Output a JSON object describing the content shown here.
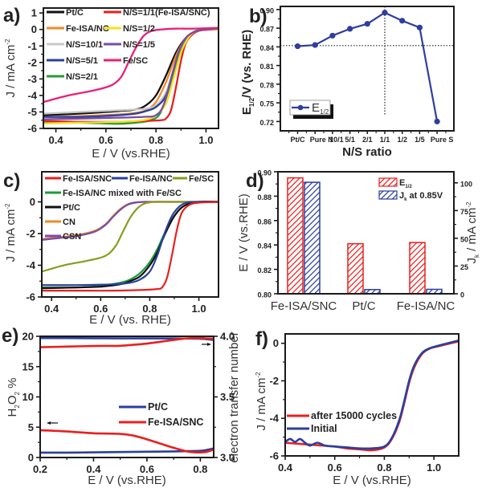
{
  "figure": {
    "panels": [
      "a)",
      "b)",
      "c)",
      "d)",
      "e)",
      "f)"
    ]
  },
  "chart_data": [
    {
      "id": "a",
      "type": "line",
      "panel_label": "a)",
      "xlabel": "E / V (vs.RHE)",
      "ylabel": "J / mA cm",
      "ylabel_sup": "-2",
      "xlim": [
        0.35,
        1.05
      ],
      "ylim": [
        -6,
        1.3
      ],
      "xticks": [
        0.4,
        0.6,
        0.8,
        1.0
      ],
      "xtick_labels": [
        "0.4",
        "0.6",
        "0.8",
        "1.0"
      ],
      "yticks": [
        1,
        0,
        -1,
        -2,
        -3,
        -4,
        -5,
        -6
      ],
      "ytick_labels": [
        "1",
        "0",
        "-1",
        "-2",
        "-3",
        "-4",
        "-5",
        "-6"
      ],
      "legend": "top-left, two columns",
      "series": [
        {
          "name": "Pt/C",
          "color": "#111111",
          "x": [
            0.35,
            0.5,
            0.65,
            0.72,
            0.76,
            0.8,
            0.84,
            0.88,
            0.92,
            0.96,
            1.0,
            1.05
          ],
          "y": [
            -5.2,
            -5.1,
            -4.95,
            -4.85,
            -4.6,
            -4.0,
            -2.8,
            -1.4,
            -0.5,
            -0.1,
            0.0,
            0.05
          ]
        },
        {
          "name": "Fe-ISA/NC",
          "color": "#f08a24",
          "x": [
            0.35,
            0.5,
            0.65,
            0.72,
            0.76,
            0.8,
            0.84,
            0.88,
            0.92,
            0.96,
            1.0,
            1.05
          ],
          "y": [
            -5.3,
            -5.25,
            -5.15,
            -5.05,
            -4.9,
            -4.4,
            -3.2,
            -1.6,
            -0.5,
            -0.1,
            0.0,
            0.05
          ]
        },
        {
          "name": "N/S=10/1",
          "color": "#c8c8c8",
          "x": [
            0.35,
            0.5,
            0.65,
            0.72,
            0.76,
            0.8,
            0.84,
            0.88,
            0.92,
            0.96,
            1.0,
            1.05
          ],
          "y": [
            -5.1,
            -5.0,
            -4.9,
            -4.85,
            -4.8,
            -4.6,
            -3.8,
            -2.0,
            -0.6,
            -0.1,
            0.0,
            0.05
          ]
        },
        {
          "name": "N/S=5/1",
          "color": "#2a3fa0",
          "x": [
            0.35,
            0.5,
            0.65,
            0.72,
            0.76,
            0.8,
            0.84,
            0.88,
            0.92,
            0.96,
            1.0,
            1.05
          ],
          "y": [
            -5.3,
            -5.3,
            -5.2,
            -5.1,
            -4.95,
            -4.7,
            -4.0,
            -2.2,
            -0.7,
            -0.15,
            0.0,
            0.05
          ]
        },
        {
          "name": "N/S=2/1",
          "color": "#2a9a3a",
          "x": [
            0.35,
            0.5,
            0.6,
            0.65,
            0.72,
            0.78,
            0.82,
            0.86,
            0.9,
            0.94,
            0.98,
            1.05
          ],
          "y": [
            -5.6,
            -5.65,
            -5.7,
            -5.72,
            -5.65,
            -5.5,
            -5.0,
            -3.2,
            -1.3,
            -0.3,
            0.0,
            0.05
          ]
        },
        {
          "name": "N/S=1/1(Fe-ISA/SNC)",
          "color": "#e8201e",
          "x": [
            0.35,
            0.5,
            0.65,
            0.75,
            0.82,
            0.84,
            0.86,
            0.88,
            0.9,
            0.92,
            0.95,
            0.98,
            1.05
          ],
          "y": [
            -5.55,
            -5.6,
            -5.6,
            -5.55,
            -5.5,
            -5.4,
            -4.9,
            -3.5,
            -1.9,
            -0.8,
            -0.25,
            -0.05,
            0.0
          ]
        },
        {
          "name": "N/S=1/2",
          "color": "#f5e21a",
          "x": [
            0.35,
            0.5,
            0.65,
            0.75,
            0.8,
            0.84,
            0.87,
            0.9,
            0.93,
            0.96,
            1.0,
            1.05
          ],
          "y": [
            -5.7,
            -5.65,
            -5.6,
            -5.5,
            -5.2,
            -4.5,
            -3.0,
            -1.4,
            -0.5,
            -0.1,
            0.0,
            0.0
          ]
        },
        {
          "name": "N/S=1/5",
          "color": "#7a4aa8",
          "x": [
            0.35,
            0.5,
            0.65,
            0.75,
            0.8,
            0.83,
            0.86,
            0.89,
            0.92,
            0.96,
            1.0,
            1.05
          ],
          "y": [
            -5.45,
            -5.4,
            -5.35,
            -5.3,
            -5.2,
            -4.6,
            -3.0,
            -1.4,
            -0.5,
            -0.1,
            0.0,
            0.05
          ]
        },
        {
          "name": "Fe/SC",
          "color": "#e8207a",
          "x": [
            0.35,
            0.45,
            0.55,
            0.62,
            0.66,
            0.69,
            0.72,
            0.75,
            0.78,
            0.82,
            0.88,
            0.95,
            1.05
          ],
          "y": [
            -4.4,
            -4.0,
            -3.7,
            -3.4,
            -2.9,
            -2.0,
            -1.1,
            -0.4,
            -0.1,
            0.0,
            0.05,
            0.05,
            0.1
          ]
        }
      ]
    },
    {
      "id": "b",
      "type": "line",
      "panel_label": "b)",
      "xlabel": "N/S ratio",
      "ylabel": "E",
      "ylabel_sub": "1/2",
      "ylabel_rest": "/V (vs. RHE)",
      "categories": [
        "Pt/C",
        "Pure N",
        "10/1",
        "5/1",
        "2/1",
        "1/1",
        "1/2",
        "1/5",
        "Pure S"
      ],
      "xtick_labels": [
        "Pt/C",
        "Pure N",
        "10/1",
        "5/1",
        "2/1",
        "1/1",
        "1/2",
        "1/5",
        "Pure S"
      ],
      "ylim": [
        0.705,
        0.905
      ],
      "yticks": [
        0.72,
        0.75,
        0.78,
        0.81,
        0.84,
        0.87,
        0.9
      ],
      "ytick_labels": [
        "0.72",
        "0.75",
        "0.78",
        "0.81",
        "0.84",
        "0.87",
        "0.90"
      ],
      "reference_lines": {
        "horizontal_y": 0.842,
        "vertical_category": "1/1"
      },
      "legend": "bottom-left",
      "series": [
        {
          "name": "E",
          "name_sub": "1/2",
          "color": "#2e3ea0",
          "values": [
            0.841,
            0.843,
            0.858,
            0.869,
            0.877,
            0.895,
            0.882,
            0.871,
            0.72
          ]
        }
      ]
    },
    {
      "id": "c",
      "type": "line",
      "panel_label": "c)",
      "xlabel": "E / V (vs. RHE)",
      "ylabel": "J / mA cm",
      "ylabel_sup": "-2",
      "xlim": [
        0.36,
        1.08
      ],
      "ylim": [
        -6,
        1.9
      ],
      "xticks": [
        0.4,
        0.6,
        0.8,
        1.0
      ],
      "xtick_labels": [
        "0.4",
        "0.6",
        "0.8",
        "1.0"
      ],
      "yticks": [
        0,
        -2,
        -4,
        -6
      ],
      "ytick_labels": [
        "0",
        "-2",
        "-4",
        "-6"
      ],
      "legend": "top",
      "series": [
        {
          "name": "Fe-ISA/SNC",
          "color": "#e8201e",
          "x": [
            0.36,
            0.5,
            0.65,
            0.78,
            0.83,
            0.85,
            0.87,
            0.89,
            0.91,
            0.93,
            0.96,
            1.0,
            1.08
          ],
          "y": [
            -5.6,
            -5.6,
            -5.6,
            -5.55,
            -5.5,
            -5.4,
            -4.8,
            -3.4,
            -1.8,
            -0.7,
            -0.2,
            -0.05,
            0.0
          ]
        },
        {
          "name": "Fe-ISA/NC",
          "color": "#2a3fa0",
          "x": [
            0.36,
            0.5,
            0.65,
            0.72,
            0.76,
            0.8,
            0.83,
            0.86,
            0.89,
            0.92,
            0.95,
            1.0,
            1.08
          ],
          "y": [
            -5.25,
            -5.25,
            -5.2,
            -5.1,
            -4.9,
            -4.4,
            -3.4,
            -2.0,
            -0.9,
            -0.3,
            -0.05,
            0.0,
            0.0
          ]
        },
        {
          "name": "Fe/SC",
          "color": "#8a9a20",
          "x": [
            0.36,
            0.45,
            0.55,
            0.62,
            0.66,
            0.69,
            0.72,
            0.75,
            0.78,
            0.82,
            0.9,
            1.08
          ],
          "y": [
            -4.4,
            -4.0,
            -3.7,
            -3.4,
            -2.8,
            -1.9,
            -1.0,
            -0.4,
            -0.1,
            0.0,
            0.0,
            0.0
          ]
        },
        {
          "name": "Fe-ISA/NC mixed with Fe/SC",
          "color": "#1e9a3a",
          "x": [
            0.36,
            0.5,
            0.6,
            0.68,
            0.72,
            0.76,
            0.8,
            0.83,
            0.86,
            0.9,
            0.94,
            1.0,
            1.08
          ],
          "y": [
            -5.4,
            -5.4,
            -5.3,
            -5.1,
            -4.9,
            -4.5,
            -3.8,
            -3.0,
            -2.0,
            -0.9,
            -0.25,
            0.0,
            0.0
          ]
        },
        {
          "name": "Pt/C",
          "color": "#111111",
          "x": [
            0.36,
            0.5,
            0.6,
            0.68,
            0.72,
            0.76,
            0.8,
            0.83,
            0.86,
            0.9,
            0.94,
            1.0,
            1.08
          ],
          "y": [
            -5.45,
            -5.4,
            -5.35,
            -5.2,
            -5.0,
            -4.7,
            -4.0,
            -3.2,
            -2.1,
            -0.9,
            -0.25,
            0.0,
            0.0
          ]
        },
        {
          "name": "CN",
          "color": "#f08a24",
          "x": [
            0.36,
            0.45,
            0.52,
            0.58,
            0.62,
            0.65,
            0.68,
            0.71,
            0.74,
            0.78,
            0.85,
            1.08
          ],
          "y": [
            -2.35,
            -2.2,
            -2.05,
            -1.8,
            -1.4,
            -0.9,
            -0.45,
            -0.15,
            -0.03,
            0.0,
            0.0,
            0.0
          ]
        },
        {
          "name": "CSN",
          "color": "#7a4aa8",
          "x": [
            0.36,
            0.45,
            0.52,
            0.58,
            0.62,
            0.65,
            0.68,
            0.71,
            0.74,
            0.78,
            0.85,
            1.08
          ],
          "y": [
            -2.4,
            -2.25,
            -2.1,
            -1.85,
            -1.45,
            -0.95,
            -0.5,
            -0.18,
            -0.05,
            0.0,
            0.0,
            0.0
          ]
        }
      ]
    },
    {
      "id": "d",
      "type": "bar",
      "panel_label": "d)",
      "categories": [
        "Fe-ISA/SNC",
        "Pt/C",
        "Fe-ISA/NC"
      ],
      "ylabel": "E / V (vs.RHE)",
      "ylim": [
        0.8,
        0.9
      ],
      "yticks": [
        0.8,
        0.82,
        0.84,
        0.86,
        0.88,
        0.9
      ],
      "ytick_labels": [
        "0.80",
        "0.82",
        "0.84",
        "0.86",
        "0.88",
        "0.90"
      ],
      "y2label": "J",
      "y2label_sub": "k",
      "y2label_rest": " / mA cm",
      "y2label_sup": "-2",
      "y2lim": [
        0,
        110
      ],
      "y2ticks": [
        0,
        25,
        50,
        75,
        100
      ],
      "y2tick_labels": [
        "0",
        "25",
        "50",
        "75",
        "100"
      ],
      "legend": "top-right",
      "series": [
        {
          "name": "E",
          "name_sub": "1/2",
          "name_rest": "",
          "axis": "left",
          "color": "#e8201e",
          "values": [
            0.895,
            0.841,
            0.842
          ]
        },
        {
          "name": "J",
          "name_sub": "k",
          "name_rest": " at 0.85V",
          "axis": "right",
          "color": "#2a3fa0",
          "values": [
            100.5,
            3.8,
            4.0
          ]
        }
      ]
    },
    {
      "id": "e",
      "type": "line",
      "panel_label": "e)",
      "xlabel": "E / V (vs.RHE)",
      "ylabel": "H",
      "ylabel_sub1": "2",
      "ylabel_mid": "O",
      "ylabel_sub2": "2",
      "ylabel_rest": " %",
      "y2label": "electron transfer number",
      "xlim": [
        0.2,
        0.85
      ],
      "ylim": [
        0,
        20
      ],
      "y2lim": [
        3.0,
        4.0
      ],
      "xticks": [
        0.2,
        0.4,
        0.6,
        0.8
      ],
      "xtick_labels": [
        "0.2",
        "0.4",
        "0.6",
        "0.8"
      ],
      "yticks": [
        0,
        5,
        10,
        15,
        20
      ],
      "ytick_labels": [
        "0",
        "5",
        "10",
        "15",
        "20"
      ],
      "y2ticks": [
        3.0,
        3.5,
        4.0
      ],
      "y2tick_labels": [
        "3.0",
        "3.5",
        "4.0"
      ],
      "legend": "center-right",
      "arrows": {
        "left_arrow_near": "H2O2 curve (left axis)",
        "right_arrow_near": "n curve (right axis)"
      },
      "series": [
        {
          "name": "Pt/C",
          "color": "#2a3fa0",
          "axis": "left",
          "x": [
            0.2,
            0.3,
            0.4,
            0.5,
            0.6,
            0.7,
            0.75,
            0.8,
            0.83,
            0.85
          ],
          "y": [
            0.8,
            0.8,
            0.85,
            0.9,
            0.95,
            1.0,
            1.05,
            1.1,
            1.3,
            1.5
          ]
        },
        {
          "name": "Fe-ISA/SNC",
          "color": "#e8201e",
          "axis": "left",
          "x": [
            0.2,
            0.3,
            0.4,
            0.5,
            0.55,
            0.6,
            0.65,
            0.7,
            0.75,
            0.78,
            0.82,
            0.85
          ],
          "y": [
            4.5,
            4.3,
            4.0,
            3.9,
            3.6,
            3.0,
            2.3,
            1.6,
            1.0,
            0.85,
            0.9,
            1.3
          ]
        },
        {
          "name": "Pt/C (n)",
          "color": "#2a3fa0",
          "axis": "right",
          "x": [
            0.2,
            0.3,
            0.4,
            0.5,
            0.6,
            0.7,
            0.8,
            0.85
          ],
          "y": [
            3.985,
            3.985,
            3.984,
            3.983,
            3.983,
            3.982,
            3.98,
            3.97
          ]
        },
        {
          "name": "Fe-ISA/SNC (n)",
          "color": "#e8201e",
          "axis": "right",
          "x": [
            0.2,
            0.3,
            0.4,
            0.5,
            0.55,
            0.6,
            0.65,
            0.7,
            0.75,
            0.8,
            0.85
          ],
          "y": [
            3.91,
            3.915,
            3.92,
            3.922,
            3.93,
            3.94,
            3.955,
            3.97,
            3.983,
            3.985,
            3.98
          ]
        }
      ]
    },
    {
      "id": "f",
      "type": "line",
      "panel_label": "f)",
      "xlabel": "E / V (vs.RHE)",
      "ylabel": "J / mA cm",
      "ylabel_sup": "-2",
      "xlim": [
        0.4,
        1.1
      ],
      "ylim": [
        -6,
        0.5
      ],
      "xticks": [
        0.4,
        0.6,
        0.8,
        1.0
      ],
      "xtick_labels": [
        "0.4",
        "0.6",
        "0.8",
        "1.0"
      ],
      "yticks": [
        0,
        -2,
        -4,
        -6
      ],
      "ytick_labels": [
        "0",
        "-2",
        "-4",
        "-6"
      ],
      "legend": "center-left",
      "series": [
        {
          "name": "after 15000 cycles",
          "color": "#e8201e",
          "x": [
            0.4,
            0.45,
            0.5,
            0.55,
            0.6,
            0.65,
            0.7,
            0.75,
            0.8,
            0.83,
            0.86,
            0.88,
            0.9,
            0.92,
            0.95,
            0.98,
            1.02,
            1.1
          ],
          "y": [
            -5.3,
            -5.35,
            -5.4,
            -5.45,
            -5.5,
            -5.6,
            -5.65,
            -5.7,
            -5.55,
            -5.1,
            -4.2,
            -3.2,
            -2.1,
            -1.3,
            -0.6,
            -0.3,
            -0.15,
            0.1
          ]
        },
        {
          "name": "Initial",
          "color": "#2a3fa0",
          "x": [
            0.4,
            0.42,
            0.44,
            0.46,
            0.48,
            0.5,
            0.53,
            0.56,
            0.6,
            0.65,
            0.7,
            0.75,
            0.8,
            0.83,
            0.86,
            0.88,
            0.9,
            0.92,
            0.95,
            0.98,
            1.02,
            1.1
          ],
          "y": [
            -5.25,
            -5.1,
            -5.25,
            -5.1,
            -5.3,
            -5.45,
            -5.3,
            -5.45,
            -5.5,
            -5.55,
            -5.6,
            -5.6,
            -5.5,
            -5.05,
            -4.1,
            -3.1,
            -2.0,
            -1.2,
            -0.55,
            -0.28,
            -0.12,
            0.15
          ]
        }
      ]
    }
  ]
}
